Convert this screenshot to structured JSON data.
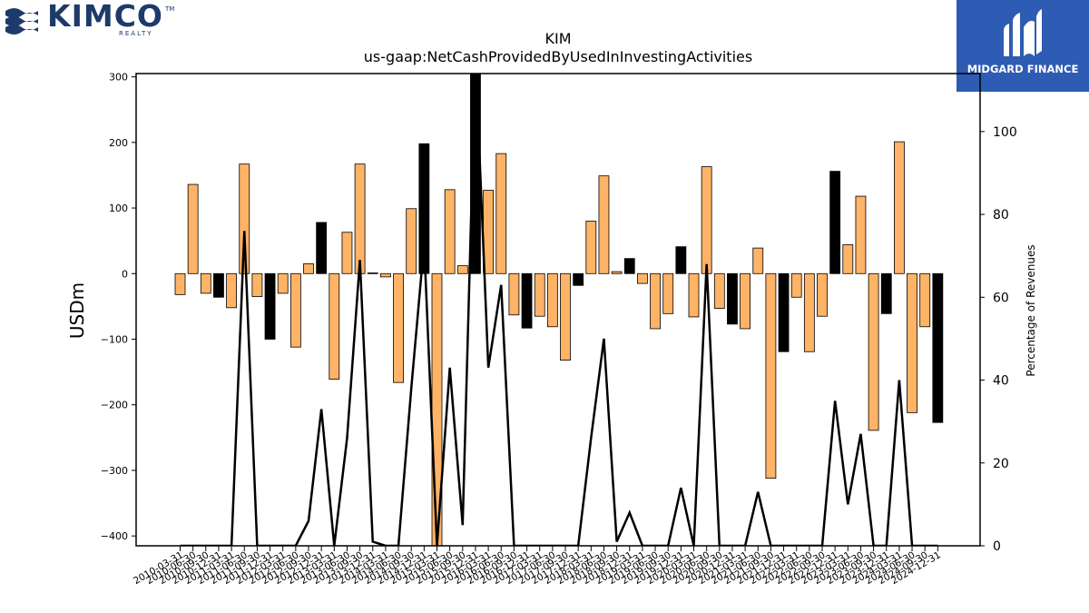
{
  "logos": {
    "left_word": "KIMCO",
    "left_sub": "REALTY",
    "left_tm": "TM",
    "right_name": "MIDGARD FINANCE",
    "brand_navy": "#1d3a6b",
    "brand_blue": "#2e5bb3"
  },
  "chart_data": {
    "type": "bar",
    "title": "KIM",
    "subtitle": "us-gaap:NetCashProvidedByUsedInInvestingActivities",
    "ylabel": "USDm",
    "ylabel_right": "Percentage of Revenues",
    "ylim": [
      -415,
      305
    ],
    "ylim_right": [
      0,
      114
    ],
    "yticks": [
      -400,
      -300,
      -200,
      -100,
      0,
      100,
      200,
      300
    ],
    "yticks_right": [
      0,
      20,
      40,
      60,
      80,
      100
    ],
    "grid": false,
    "colors": {
      "positive_bar": "#ffb366",
      "negative_bar": "#000000",
      "line": "#000000"
    },
    "categories": [
      "2010-03-31",
      "2010-06-30",
      "2010-09-30",
      "2010-12-31",
      "2011-03-31",
      "2011-06-30",
      "2011-09-30",
      "2011-12-31",
      "2012-03-31",
      "2012-06-30",
      "2012-09-30",
      "2012-12-31",
      "2013-03-31",
      "2013-06-30",
      "2013-09-30",
      "2013-12-31",
      "2014-03-31",
      "2014-06-30",
      "2014-09-30",
      "2014-12-31",
      "2015-03-31",
      "2015-06-30",
      "2015-09-30",
      "2015-12-31",
      "2016-03-31",
      "2016-06-30",
      "2016-09-30",
      "2016-12-31",
      "2017-03-31",
      "2017-06-30",
      "2017-09-30",
      "2017-12-31",
      "2018-03-31",
      "2018-06-30",
      "2018-09-30",
      "2018-12-31",
      "2019-03-31",
      "2019-06-30",
      "2019-09-30",
      "2019-12-31",
      "2020-03-31",
      "2020-06-30",
      "2020-09-30",
      "2020-12-31",
      "2021-03-31",
      "2021-06-30",
      "2021-09-30",
      "2021-12-31",
      "2022-03-31",
      "2022-06-30",
      "2022-09-30",
      "2022-12-31",
      "2023-03-31",
      "2023-06-30",
      "2023-09-30",
      "2023-12-31",
      "2024-03-31",
      "2024-06-30",
      "2024-09-30",
      "2024-12-31"
    ],
    "x_tick_labels": [
      "2010-03-31",
      "2010-06-30",
      "2010-09-30",
      "2010-12-31",
      "2011-03-31",
      "2011-06-30",
      "2011-09-30",
      "2011-12-31",
      "2012-03-31",
      "2012-06-30",
      "2012-09-30",
      "2012-12-31",
      "2013-03-31",
      "2013-06-30",
      "2013-09-30",
      "2013-12-31",
      "2014-03-31",
      "2014-06-30",
      "2014-09-30",
      "2014-12-31",
      "2015-03-31",
      "2015-06-30",
      "2015-09-30",
      "2015-12-31",
      "2016-03-31",
      "2016-06-30",
      "2016-09-30",
      "2016-12-31",
      "2017-03-31",
      "2017-06-30",
      "2017-09-30",
      "2017-12-31",
      "2018-03-31",
      "2018-06-30",
      "2018-09-30",
      "2018-12-31",
      "2019-03-31",
      "2019-06-30",
      "2019-09-30",
      "2019-12-31",
      "2020-03-31",
      "2020-06-30",
      "2020-09-30",
      "2020-12-31",
      "2021-03-31",
      "2021-06-30",
      "2021-09-30",
      "2021-12-31",
      "2022-03-31",
      "2022-06-30",
      "2022-09-30",
      "2022-12-31",
      "2023-03-31",
      "2023-06-30",
      "2023-09-30",
      "2023-12-31",
      "2024-03-31",
      "2024-06-30",
      "2024-09-30",
      "2024-12-31"
    ],
    "values": [
      -32,
      136,
      -30,
      -36,
      -52,
      167,
      -35,
      -100,
      -30,
      -112,
      15,
      78,
      -161,
      63,
      167,
      1,
      -5,
      -166,
      99,
      198,
      -420,
      128,
      12,
      322,
      127,
      183,
      -63,
      -83,
      -65,
      -81,
      -132,
      -18,
      80,
      149,
      3,
      23,
      -15,
      -84,
      -61,
      41,
      -66,
      163,
      -53,
      -77,
      -84,
      39,
      -312,
      -119,
      -36,
      -119,
      -65,
      156,
      44,
      118,
      -239,
      -61,
      201,
      -212,
      -81,
      -227
    ],
    "percent_of_revenue": [
      0,
      0,
      0,
      0,
      0,
      76,
      0,
      0,
      0,
      0,
      6,
      33,
      0,
      26,
      69,
      1,
      0,
      0,
      38,
      73,
      0,
      43,
      5,
      118,
      43,
      63,
      0,
      0,
      0,
      0,
      0,
      0,
      26,
      50,
      1,
      8,
      0,
      0,
      0,
      14,
      0,
      68,
      0,
      0,
      0,
      13,
      0,
      0,
      0,
      0,
      0,
      35,
      10,
      27,
      0,
      0,
      40,
      0,
      0,
      0
    ]
  }
}
